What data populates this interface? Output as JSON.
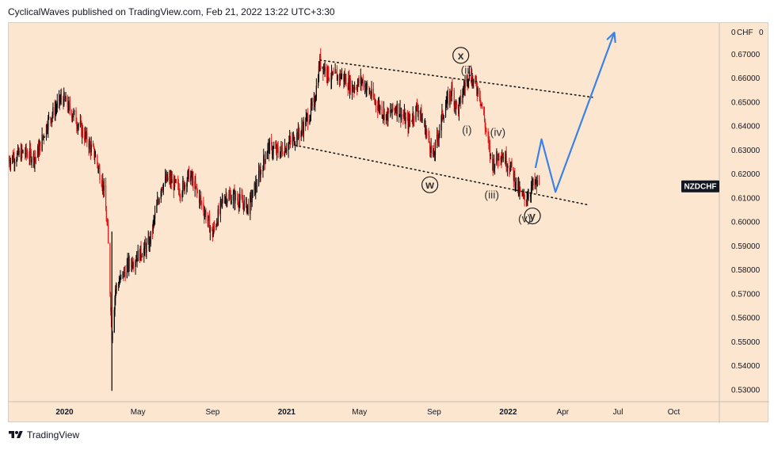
{
  "header": {
    "publish_line": "CyclicalWaves published on TradingView.com, Feb 21, 2022 13:22 UTC+3:30"
  },
  "footer": {
    "brand": "TradingView"
  },
  "colors": {
    "background": "#fce6cf",
    "candle_up": "#000000",
    "candle_down": "#e11a1a",
    "projection": "#3b82e8",
    "channel": "#1a1a1a"
  },
  "chart_data": {
    "type": "candlestick",
    "symbol": "NZDCHF",
    "currency": "CHF",
    "currency_label": "CHF",
    "currency_label_suffix": "0",
    "y_top_tick": "0",
    "ylim": [
      0.525,
      0.683
    ],
    "y_ticks": [
      "0.67000",
      "0.66000",
      "0.65000",
      "0.64000",
      "0.63000",
      "0.62000",
      "0.61000",
      "0.60000",
      "0.59000",
      "0.58000",
      "0.57000",
      "0.56000",
      "0.55000",
      "0.54000",
      "0.53000"
    ],
    "x_ticks": [
      {
        "label": "2020",
        "date": "2020-01-01"
      },
      {
        "label": "May",
        "date": "2020-05-01"
      },
      {
        "label": "Sep",
        "date": "2020-09-01"
      },
      {
        "label": "2021",
        "date": "2021-01-01"
      },
      {
        "label": "May",
        "date": "2021-05-01"
      },
      {
        "label": "Sep",
        "date": "2021-09-01"
      },
      {
        "label": "2022",
        "date": "2022-01-01"
      },
      {
        "label": "Apr",
        "date": "2022-04-01"
      },
      {
        "label": "Jul",
        "date": "2022-07-01"
      },
      {
        "label": "Oct",
        "date": "2022-10-01"
      }
    ],
    "xlim": [
      "2019-10-01",
      "2022-12-15"
    ],
    "price_path": [
      [
        "2019-10-01",
        0.626
      ],
      [
        "2019-10-25",
        0.629
      ],
      [
        "2019-11-15",
        0.627
      ],
      [
        "2019-12-05",
        0.642
      ],
      [
        "2019-12-28",
        0.652
      ],
      [
        "2020-01-15",
        0.645
      ],
      [
        "2020-02-01",
        0.637
      ],
      [
        "2020-02-20",
        0.628
      ],
      [
        "2020-03-05",
        0.615
      ],
      [
        "2020-03-12",
        0.596
      ],
      [
        "2020-03-19",
        0.553
      ],
      [
        "2020-03-25",
        0.572
      ],
      [
        "2020-04-15",
        0.582
      ],
      [
        "2020-05-01",
        0.586
      ],
      [
        "2020-05-20",
        0.591
      ],
      [
        "2020-06-08",
        0.615
      ],
      [
        "2020-06-20",
        0.618
      ],
      [
        "2020-07-10",
        0.613
      ],
      [
        "2020-07-25",
        0.62
      ],
      [
        "2020-08-15",
        0.607
      ],
      [
        "2020-09-01",
        0.595
      ],
      [
        "2020-09-20",
        0.611
      ],
      [
        "2020-10-10",
        0.61
      ],
      [
        "2020-10-30",
        0.606
      ],
      [
        "2020-11-15",
        0.618
      ],
      [
        "2020-12-01",
        0.631
      ],
      [
        "2020-12-20",
        0.629
      ],
      [
        "2021-01-10",
        0.634
      ],
      [
        "2021-01-25",
        0.638
      ],
      [
        "2021-02-15",
        0.649
      ],
      [
        "2021-02-25",
        0.667
      ],
      [
        "2021-03-15",
        0.66
      ],
      [
        "2021-04-01",
        0.661
      ],
      [
        "2021-04-20",
        0.656
      ],
      [
        "2021-05-05",
        0.659
      ],
      [
        "2021-05-25",
        0.651
      ],
      [
        "2021-06-15",
        0.644
      ],
      [
        "2021-07-01",
        0.648
      ],
      [
        "2021-07-20",
        0.641
      ],
      [
        "2021-08-05",
        0.648
      ],
      [
        "2021-08-20",
        0.637
      ],
      [
        "2021-08-31",
        0.627
      ],
      [
        "2021-09-15",
        0.645
      ],
      [
        "2021-09-30",
        0.655
      ],
      [
        "2021-10-10",
        0.646
      ],
      [
        "2021-10-20",
        0.656
      ],
      [
        "2021-10-28",
        0.662
      ],
      [
        "2021-11-15",
        0.654
      ],
      [
        "2021-11-25",
        0.639
      ],
      [
        "2021-12-05",
        0.624
      ],
      [
        "2021-12-20",
        0.629
      ],
      [
        "2022-01-05",
        0.623
      ],
      [
        "2022-01-20",
        0.612
      ],
      [
        "2022-01-28",
        0.609
      ],
      [
        "2022-02-10",
        0.615
      ],
      [
        "2022-02-21",
        0.616
      ]
    ],
    "projection": {
      "points": [
        [
          "2022-02-15",
          0.6225
        ],
        [
          "2022-02-25",
          0.6345
        ],
        [
          "2022-03-20",
          0.6125
        ],
        [
          "2022-06-25",
          0.679
        ]
      ],
      "arrow_end": [
        "2022-06-25",
        0.679
      ]
    },
    "channel_lines": [
      {
        "from": [
          "2021-02-25",
          0.6675
        ],
        "to": [
          "2022-05-20",
          0.652
        ]
      },
      {
        "from": [
          "2021-01-15",
          0.632
        ],
        "to": [
          "2022-05-15",
          0.607
        ]
      }
    ],
    "wave_labels": [
      {
        "text": "x",
        "date": "2021-10-15",
        "price": 0.6695,
        "circled": true
      },
      {
        "text": "(ii)",
        "date": "2021-10-25",
        "price": 0.6635,
        "circled": false
      },
      {
        "text": "(i)",
        "date": "2021-10-25",
        "price": 0.6385,
        "circled": false
      },
      {
        "text": "(iv)",
        "date": "2021-12-15",
        "price": 0.6375,
        "circled": false
      },
      {
        "text": "w",
        "date": "2021-08-25",
        "price": 0.6155,
        "circled": true
      },
      {
        "text": "(iii)",
        "date": "2021-12-05",
        "price": 0.6115,
        "circled": false
      },
      {
        "text": "(v)",
        "date": "2022-01-28",
        "price": 0.6015,
        "circled": false
      },
      {
        "text": "y",
        "date": "2022-02-10",
        "price": 0.6025,
        "circled": true
      }
    ]
  }
}
